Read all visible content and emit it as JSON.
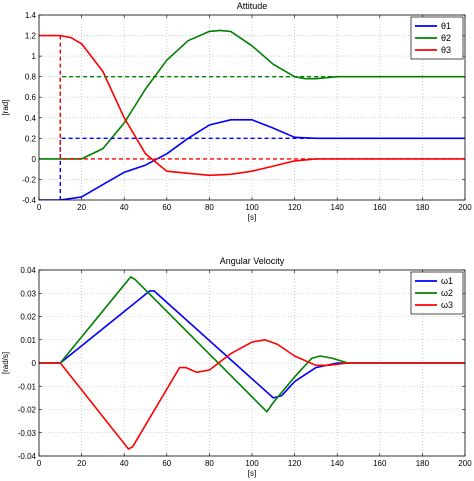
{
  "chart_data": [
    {
      "type": "line",
      "title": "Attitude",
      "xlabel": "[s]",
      "ylabel": "[rad]",
      "xlim": [
        0,
        200
      ],
      "ylim": [
        -0.4,
        1.4
      ],
      "x_ticks": [
        "0",
        "20",
        "40",
        "60",
        "80",
        "100",
        "120",
        "140",
        "160",
        "180",
        "200"
      ],
      "y_ticks": [
        "-0.4",
        "-0.2",
        "0",
        "0.2",
        "0.4",
        "0.6",
        "0.8",
        "1",
        "1.2",
        "1.4"
      ],
      "grid": true,
      "legend_position": "top-right",
      "series": [
        {
          "name": "θ1",
          "color": "#0000ff",
          "style": "solid",
          "points": [
            [
              0,
              -0.4
            ],
            [
              10,
              -0.4
            ],
            [
              20,
              -0.37
            ],
            [
              30,
              -0.25
            ],
            [
              40,
              -0.13
            ],
            [
              50,
              -0.06
            ],
            [
              60,
              0.05
            ],
            [
              70,
              0.2
            ],
            [
              80,
              0.33
            ],
            [
              90,
              0.38
            ],
            [
              100,
              0.38
            ],
            [
              110,
              0.3
            ],
            [
              120,
              0.21
            ],
            [
              130,
              0.2
            ],
            [
              140,
              0.2
            ],
            [
              150,
              0.2
            ],
            [
              200,
              0.2
            ]
          ]
        },
        {
          "name": "θ2",
          "color": "#008000",
          "style": "solid",
          "points": [
            [
              0,
              0
            ],
            [
              10,
              0
            ],
            [
              20,
              0
            ],
            [
              30,
              0.1
            ],
            [
              40,
              0.35
            ],
            [
              50,
              0.68
            ],
            [
              60,
              0.96
            ],
            [
              70,
              1.15
            ],
            [
              80,
              1.24
            ],
            [
              85,
              1.25
            ],
            [
              90,
              1.24
            ],
            [
              100,
              1.1
            ],
            [
              110,
              0.92
            ],
            [
              120,
              0.8
            ],
            [
              125,
              0.78
            ],
            [
              130,
              0.78
            ],
            [
              140,
              0.8
            ],
            [
              150,
              0.8
            ],
            [
              200,
              0.8
            ]
          ]
        },
        {
          "name": "θ3",
          "color": "#ff0000",
          "style": "solid",
          "points": [
            [
              0,
              1.2
            ],
            [
              10,
              1.2
            ],
            [
              15,
              1.18
            ],
            [
              20,
              1.12
            ],
            [
              30,
              0.85
            ],
            [
              40,
              0.4
            ],
            [
              50,
              0.05
            ],
            [
              60,
              -0.12
            ],
            [
              70,
              -0.14
            ],
            [
              80,
              -0.16
            ],
            [
              90,
              -0.15
            ],
            [
              100,
              -0.12
            ],
            [
              110,
              -0.07
            ],
            [
              120,
              -0.02
            ],
            [
              130,
              0
            ],
            [
              140,
              0
            ],
            [
              200,
              0
            ]
          ]
        },
        {
          "name": "",
          "color": "#0000ff",
          "style": "dashed",
          "points": [
            [
              10,
              -0.4
            ],
            [
              10,
              0.2
            ],
            [
              200,
              0.2
            ]
          ]
        },
        {
          "name": "",
          "color": "#008000",
          "style": "dashed",
          "points": [
            [
              10,
              0
            ],
            [
              10,
              0.8
            ],
            [
              200,
              0.8
            ]
          ]
        },
        {
          "name": "",
          "color": "#ff0000",
          "style": "dashed",
          "points": [
            [
              10,
              1.2
            ],
            [
              10,
              0
            ],
            [
              200,
              0
            ]
          ]
        }
      ]
    },
    {
      "type": "line",
      "title": "Angular Velocity",
      "xlabel": "[s]",
      "ylabel": "[rad/s]",
      "xlim": [
        0,
        200
      ],
      "ylim": [
        -0.04,
        0.04
      ],
      "x_ticks": [
        "0",
        "20",
        "40",
        "60",
        "80",
        "100",
        "120",
        "140",
        "160",
        "180",
        "200"
      ],
      "y_ticks": [
        "-0.04",
        "-0.03",
        "-0.02",
        "-0.01",
        "0",
        "0.01",
        "0.02",
        "0.03",
        "0.04"
      ],
      "grid": true,
      "legend_position": "top-right",
      "series": [
        {
          "name": "ω1",
          "color": "#0000ff",
          "style": "solid",
          "points": [
            [
              0,
              0
            ],
            [
              10,
              0
            ],
            [
              52,
              0.031
            ],
            [
              54,
              0.031
            ],
            [
              110,
              -0.015
            ],
            [
              114,
              -0.014
            ],
            [
              120,
              -0.008
            ],
            [
              130,
              -0.002
            ],
            [
              140,
              0
            ],
            [
              200,
              0
            ]
          ]
        },
        {
          "name": "ω2",
          "color": "#008000",
          "style": "solid",
          "points": [
            [
              0,
              0
            ],
            [
              10,
              0
            ],
            [
              43,
              0.037
            ],
            [
              45,
              0.036
            ],
            [
              107,
              -0.021
            ],
            [
              110,
              -0.017
            ],
            [
              120,
              -0.006
            ],
            [
              128,
              0.002
            ],
            [
              132,
              0.003
            ],
            [
              138,
              0.002
            ],
            [
              145,
              0
            ],
            [
              200,
              0
            ]
          ]
        },
        {
          "name": "ω3",
          "color": "#ff0000",
          "style": "solid",
          "points": [
            [
              0,
              0
            ],
            [
              10,
              0
            ],
            [
              42,
              -0.037
            ],
            [
              44,
              -0.036
            ],
            [
              66,
              -0.002
            ],
            [
              69,
              -0.002
            ],
            [
              74,
              -0.004
            ],
            [
              80,
              -0.003
            ],
            [
              90,
              0.004
            ],
            [
              100,
              0.009
            ],
            [
              106,
              0.01
            ],
            [
              112,
              0.008
            ],
            [
              120,
              0.003
            ],
            [
              130,
              -0.001
            ],
            [
              136,
              -0.001
            ],
            [
              145,
              0
            ],
            [
              200,
              0
            ]
          ]
        }
      ]
    }
  ]
}
